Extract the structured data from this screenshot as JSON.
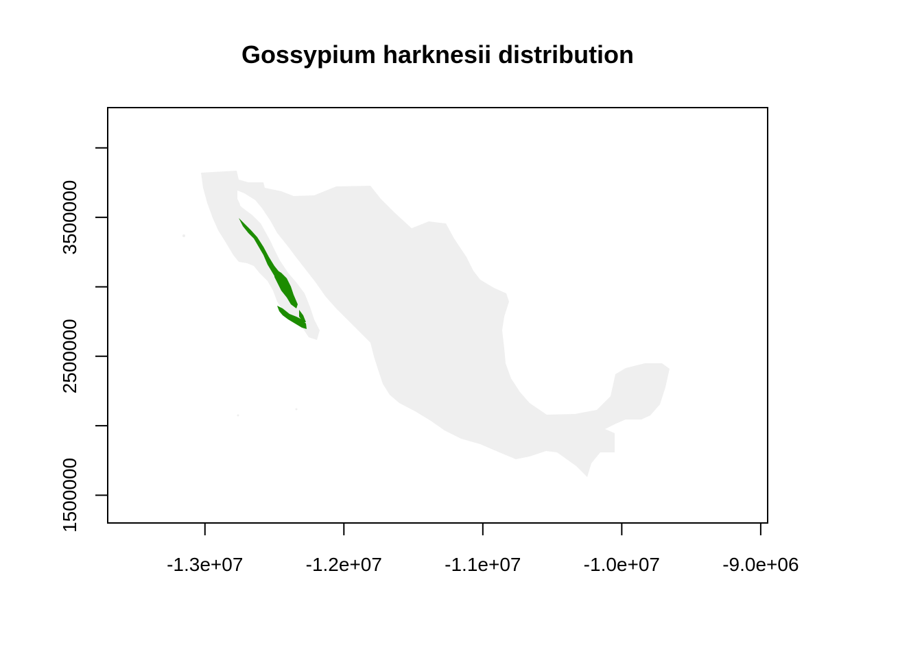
{
  "chart_data": {
    "type": "map",
    "title": "Gossypium harknesii distribution",
    "xlabel": "",
    "ylabel": "",
    "x_ticks": [
      -13000000,
      -12000000,
      -11000000,
      -10000000,
      -9000000
    ],
    "x_tick_labels": [
      "-1.3e+07",
      "-1.2e+07",
      "-1.1e+07",
      "-1.0e+07",
      "-9.0e+06"
    ],
    "y_ticks": [
      1500000,
      2000000,
      2500000,
      3000000,
      3500000,
      4000000
    ],
    "y_tick_labels": [
      "1500000",
      "",
      "2500000",
      "",
      "3500000",
      ""
    ],
    "xlim": [
      -13700000,
      -8950000
    ],
    "ylim": [
      1300000,
      4290000
    ],
    "base_map": {
      "region": "Mexico",
      "color": "#efefef"
    },
    "distribution": {
      "species": "Gossypium harknesii",
      "color": "#1c8c00"
    }
  }
}
